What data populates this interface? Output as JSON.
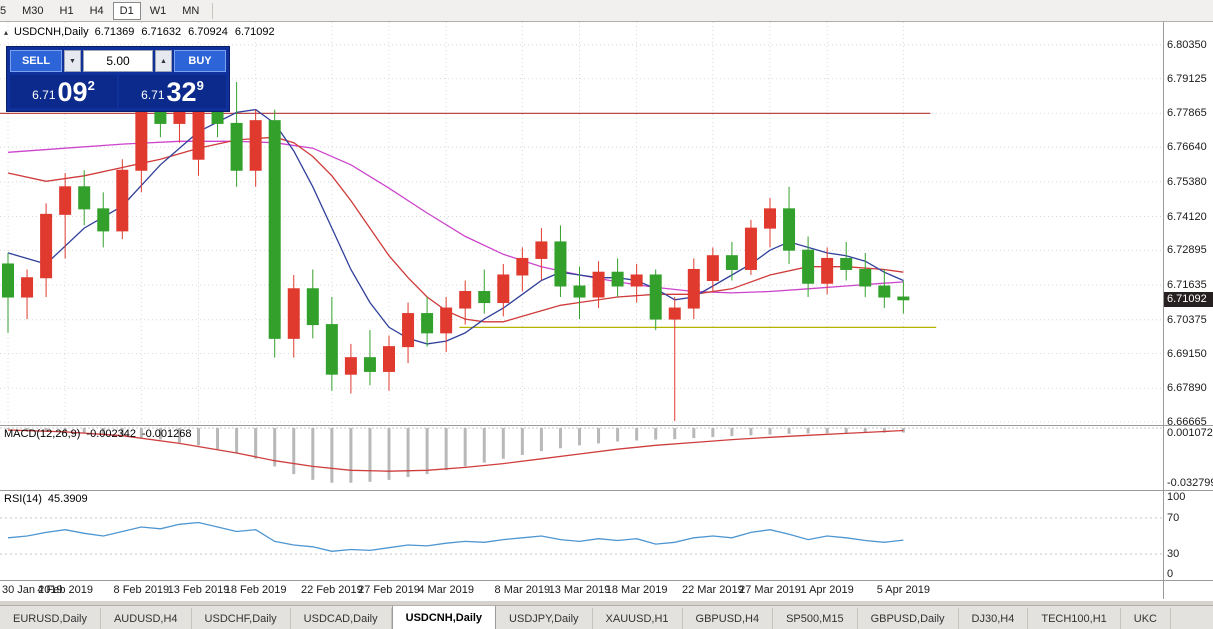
{
  "toolbar": {
    "timeframes": [
      "5",
      "M30",
      "H1",
      "H4",
      "D1",
      "W1",
      "MN"
    ],
    "active": "D1"
  },
  "icons": {
    "collapse": "▴",
    "volume_down": "▼",
    "volume_up": "▲"
  },
  "header": {
    "title": "USDCNH,Daily",
    "ohlc": [
      "6.71369",
      "6.71632",
      "6.70924",
      "6.71092"
    ]
  },
  "trade_panel": {
    "sell_label": "SELL",
    "buy_label": "BUY",
    "volume": "5.00",
    "sell_price_prefix": "6.71",
    "sell_price_big": "09",
    "sell_price_sup": "2",
    "buy_price_prefix": "6.71",
    "buy_price_big": "32",
    "buy_price_sup": "9"
  },
  "price_axis": {
    "ticks": [
      "6.80350",
      "6.79125",
      "6.77865",
      "6.76640",
      "6.75380",
      "6.74120",
      "6.72895",
      "6.71635",
      "6.70375",
      "6.69150",
      "6.67890",
      "6.66665"
    ],
    "current": "6.71092"
  },
  "macd_panel": {
    "label": "MACD(12,26,9)",
    "value_main": "-0.002342",
    "value_signal": "-0.001268",
    "axis_top": "0.001072",
    "axis_bottom": "-0.032799"
  },
  "rsi_panel": {
    "label": "RSI(14)",
    "value": "45.3909",
    "axis": [
      "100",
      "70",
      "30",
      "0"
    ]
  },
  "time_axis": {
    "labels": [
      "30 Jan 2019",
      "4 Feb 2019",
      "8 Feb 2019",
      "13 Feb 2019",
      "18 Feb 2019",
      "22 Feb 2019",
      "27 Feb 2019",
      "4 Mar 2019",
      "8 Mar 2019",
      "13 Mar 2019",
      "18 Mar 2019",
      "22 Mar 2019",
      "27 Mar 2019",
      "1 Apr 2019",
      "5 Apr 2019"
    ],
    "tick_indices": [
      0,
      3,
      7,
      10,
      13,
      17,
      20,
      23,
      27,
      30,
      33,
      37,
      40,
      43,
      47
    ]
  },
  "tabs": {
    "items": [
      "EURUSD,Daily",
      "AUDUSD,H4",
      "USDCHF,Daily",
      "USDCAD,Daily",
      "USDCNH,Daily",
      "USDJPY,Daily",
      "XAUUSD,H1",
      "GBPUSD,H4",
      "SP500,M15",
      "GBPUSD,Daily",
      "DJ30,H4",
      "TECH100,H1",
      "UKC"
    ],
    "active": "USDCNH,Daily"
  },
  "chart_data": {
    "type": "candlestick",
    "title": "USDCNH,Daily",
    "ylim": [
      6.6652,
      6.8118
    ],
    "colors": {
      "up": "#e03a2f",
      "down": "#33a02c",
      "ma_fast": "#30409a",
      "ma_mid": "#d03a3a",
      "ma_slow": "#cc44cc",
      "hline_resistance": "#b94a48",
      "hline_support": "#b3b300",
      "macd_hist": "#b8b8b8",
      "macd_signal": "#cf3d3d",
      "rsi": "#4e96d1",
      "grid": "#d8d8d8"
    },
    "candles": [
      [
        6.724,
        6.728,
        6.699,
        6.712
      ],
      [
        6.712,
        6.722,
        6.704,
        6.719
      ],
      [
        6.719,
        6.746,
        6.712,
        6.742
      ],
      [
        6.742,
        6.757,
        6.726,
        6.752
      ],
      [
        6.752,
        6.758,
        6.738,
        6.744
      ],
      [
        6.744,
        6.75,
        6.73,
        6.736
      ],
      [
        6.736,
        6.762,
        6.733,
        6.758
      ],
      [
        6.758,
        6.788,
        6.75,
        6.783
      ],
      [
        6.783,
        6.79,
        6.77,
        6.775
      ],
      [
        6.775,
        6.79,
        6.768,
        6.787
      ],
      [
        6.762,
        6.79,
        6.756,
        6.786
      ],
      [
        6.786,
        6.792,
        6.77,
        6.775
      ],
      [
        6.775,
        6.79,
        6.752,
        6.758
      ],
      [
        6.758,
        6.78,
        6.752,
        6.776
      ],
      [
        6.776,
        6.78,
        6.69,
        6.697
      ],
      [
        6.697,
        6.72,
        6.69,
        6.715
      ],
      [
        6.715,
        6.722,
        6.697,
        6.702
      ],
      [
        6.702,
        6.712,
        6.678,
        6.684
      ],
      [
        6.684,
        6.695,
        6.677,
        6.69
      ],
      [
        6.69,
        6.7,
        6.68,
        6.685
      ],
      [
        6.685,
        6.698,
        6.678,
        6.694
      ],
      [
        6.694,
        6.71,
        6.688,
        6.706
      ],
      [
        6.706,
        6.712,
        6.694,
        6.699
      ],
      [
        6.699,
        6.712,
        6.692,
        6.708
      ],
      [
        6.708,
        6.718,
        6.702,
        6.714
      ],
      [
        6.714,
        6.722,
        6.706,
        6.71
      ],
      [
        6.71,
        6.724,
        6.705,
        6.72
      ],
      [
        6.72,
        6.73,
        6.714,
        6.726
      ],
      [
        6.726,
        6.737,
        6.718,
        6.732
      ],
      [
        6.732,
        6.738,
        6.712,
        6.716
      ],
      [
        6.716,
        6.723,
        6.704,
        6.712
      ],
      [
        6.712,
        6.725,
        6.708,
        6.721
      ],
      [
        6.721,
        6.726,
        6.712,
        6.716
      ],
      [
        6.716,
        6.724,
        6.71,
        6.72
      ],
      [
        6.72,
        6.722,
        6.7,
        6.704
      ],
      [
        6.704,
        6.712,
        6.667,
        6.708
      ],
      [
        6.708,
        6.726,
        6.704,
        6.722
      ],
      [
        6.718,
        6.73,
        6.714,
        6.727
      ],
      [
        6.727,
        6.732,
        6.718,
        6.722
      ],
      [
        6.722,
        6.74,
        6.72,
        6.737
      ],
      [
        6.737,
        6.748,
        6.73,
        6.744
      ],
      [
        6.744,
        6.752,
        6.724,
        6.729
      ],
      [
        6.729,
        6.734,
        6.712,
        6.717
      ],
      [
        6.717,
        6.73,
        6.713,
        6.726
      ],
      [
        6.726,
        6.732,
        6.718,
        6.722
      ],
      [
        6.722,
        6.728,
        6.712,
        6.716
      ],
      [
        6.716,
        6.722,
        6.708,
        6.712
      ],
      [
        6.712,
        6.718,
        6.706,
        6.711
      ]
    ],
    "overlays": {
      "ma_fast": [
        [
          0,
          6.728
        ],
        [
          2,
          6.724
        ],
        [
          4,
          6.737
        ],
        [
          6,
          6.745
        ],
        [
          8,
          6.76
        ],
        [
          10,
          6.772
        ],
        [
          12,
          6.779
        ],
        [
          13,
          6.78
        ],
        [
          14,
          6.775
        ],
        [
          15,
          6.765
        ],
        [
          16,
          6.752
        ],
        [
          17,
          6.737
        ],
        [
          18,
          6.722
        ],
        [
          19,
          6.71
        ],
        [
          20,
          6.701
        ],
        [
          21,
          6.697
        ],
        [
          22,
          6.695
        ],
        [
          23,
          6.696
        ],
        [
          24,
          6.699
        ],
        [
          25,
          6.704
        ],
        [
          26,
          6.708
        ],
        [
          27,
          6.713
        ],
        [
          28,
          6.718
        ],
        [
          29,
          6.721
        ],
        [
          30,
          6.72
        ],
        [
          31,
          6.719
        ],
        [
          32,
          6.719
        ],
        [
          33,
          6.718
        ],
        [
          34,
          6.715
        ],
        [
          35,
          6.711
        ],
        [
          36,
          6.712
        ],
        [
          37,
          6.716
        ],
        [
          38,
          6.72
        ],
        [
          39,
          6.724
        ],
        [
          40,
          6.729
        ],
        [
          41,
          6.732
        ],
        [
          42,
          6.73
        ],
        [
          43,
          6.728
        ],
        [
          44,
          6.727
        ],
        [
          45,
          6.725
        ],
        [
          46,
          6.721
        ],
        [
          47,
          6.718
        ]
      ],
      "ma_mid": [
        [
          0,
          6.757
        ],
        [
          2,
          6.754
        ],
        [
          4,
          6.756
        ],
        [
          6,
          6.759
        ],
        [
          8,
          6.762
        ],
        [
          10,
          6.766
        ],
        [
          12,
          6.769
        ],
        [
          14,
          6.77
        ],
        [
          15,
          6.768
        ],
        [
          16,
          6.763
        ],
        [
          17,
          6.756
        ],
        [
          18,
          6.747
        ],
        [
          19,
          6.737
        ],
        [
          20,
          6.727
        ],
        [
          21,
          6.719
        ],
        [
          22,
          6.712
        ],
        [
          23,
          6.707
        ],
        [
          24,
          6.704
        ],
        [
          25,
          6.703
        ],
        [
          26,
          6.703
        ],
        [
          27,
          6.705
        ],
        [
          28,
          6.707
        ],
        [
          29,
          6.709
        ],
        [
          30,
          6.71
        ],
        [
          32,
          6.712
        ],
        [
          34,
          6.713
        ],
        [
          36,
          6.713
        ],
        [
          38,
          6.715
        ],
        [
          40,
          6.72
        ],
        [
          42,
          6.723
        ],
        [
          44,
          6.723
        ],
        [
          46,
          6.722
        ],
        [
          47,
          6.721
        ]
      ],
      "ma_slow": [
        [
          0,
          6.7645
        ],
        [
          3,
          6.766
        ],
        [
          6,
          6.7675
        ],
        [
          9,
          6.7685
        ],
        [
          12,
          6.7685
        ],
        [
          14,
          6.768
        ],
        [
          16,
          6.766
        ],
        [
          18,
          6.76
        ],
        [
          20,
          6.7515
        ],
        [
          22,
          6.7425
        ],
        [
          24,
          6.734
        ],
        [
          26,
          6.7275
        ],
        [
          28,
          6.723
        ],
        [
          30,
          6.72
        ],
        [
          32,
          6.7175
        ],
        [
          34,
          6.7155
        ],
        [
          36,
          6.714
        ],
        [
          38,
          6.7135
        ],
        [
          40,
          6.714
        ],
        [
          42,
          6.715
        ],
        [
          44,
          6.716
        ],
        [
          46,
          6.717
        ],
        [
          47,
          6.7175
        ]
      ]
    },
    "hlines": [
      {
        "price": 6.77865,
        "color_key": "hline_resistance",
        "x_from_frac": 0.0,
        "x_to_frac": 0.8
      },
      {
        "price": 6.701,
        "color_key": "hline_support",
        "x_from_frac": 0.395,
        "x_to_frac": 0.805
      }
    ],
    "macd": {
      "ylim": [
        -0.032799,
        0.001072
      ],
      "histogram": [
        -0.0005,
        -0.001,
        -0.0015,
        -0.002,
        -0.0025,
        -0.003,
        -0.004,
        -0.005,
        -0.006,
        -0.0075,
        -0.009,
        -0.011,
        -0.013,
        -0.016,
        -0.02,
        -0.024,
        -0.027,
        -0.0285,
        -0.0285,
        -0.028,
        -0.027,
        -0.0255,
        -0.024,
        -0.022,
        -0.02,
        -0.018,
        -0.016,
        -0.014,
        -0.012,
        -0.0105,
        -0.009,
        -0.008,
        -0.007,
        -0.0065,
        -0.006,
        -0.0058,
        -0.0052,
        -0.0047,
        -0.0042,
        -0.0038,
        -0.0034,
        -0.003,
        -0.0028,
        -0.0027,
        -0.0026,
        -0.0025,
        -0.0024,
        -0.00234
      ],
      "signal": [
        [
          0,
          -0.001
        ],
        [
          3,
          -0.002
        ],
        [
          6,
          -0.004
        ],
        [
          9,
          -0.008
        ],
        [
          12,
          -0.013
        ],
        [
          14,
          -0.017
        ],
        [
          16,
          -0.02
        ],
        [
          18,
          -0.022
        ],
        [
          20,
          -0.0225
        ],
        [
          22,
          -0.022
        ],
        [
          24,
          -0.0205
        ],
        [
          26,
          -0.0185
        ],
        [
          28,
          -0.016
        ],
        [
          30,
          -0.0135
        ],
        [
          32,
          -0.011
        ],
        [
          34,
          -0.009
        ],
        [
          36,
          -0.0075
        ],
        [
          38,
          -0.006
        ],
        [
          40,
          -0.0048
        ],
        [
          42,
          -0.0038
        ],
        [
          44,
          -0.0028
        ],
        [
          46,
          -0.0018
        ],
        [
          47,
          -0.00127
        ]
      ]
    },
    "rsi": {
      "ylim": [
        0,
        100
      ],
      "levels": [
        70,
        30
      ],
      "values": [
        48,
        50,
        54,
        57,
        53,
        50,
        55,
        60,
        58,
        63,
        65,
        60,
        55,
        57,
        44,
        40,
        38,
        33,
        35,
        34,
        37,
        40,
        39,
        42,
        44,
        43,
        46,
        48,
        50,
        46,
        44,
        47,
        45,
        47,
        41,
        43,
        48,
        50,
        48,
        54,
        57,
        52,
        46,
        50,
        48,
        45,
        43,
        45.39
      ]
    }
  }
}
